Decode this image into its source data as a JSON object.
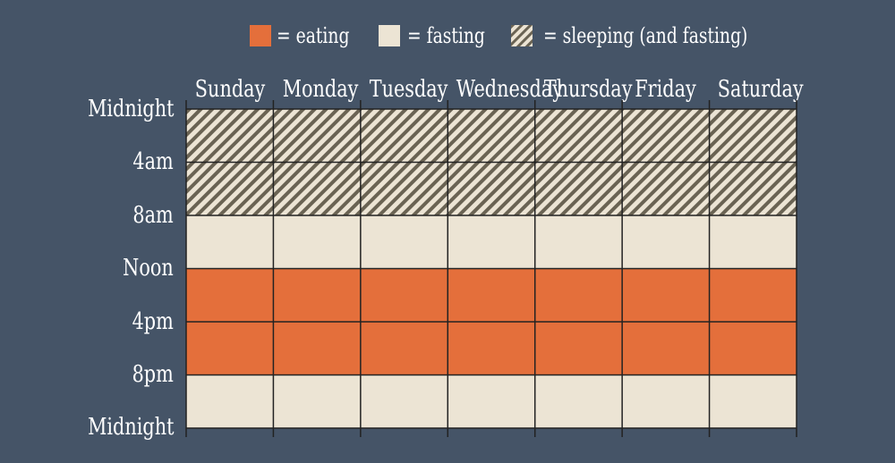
{
  "legend": [
    {
      "label": "= eating",
      "state": "eating"
    },
    {
      "label": "= fasting",
      "state": "fasting"
    },
    {
      "label": "= sleeping (and fasting)",
      "state": "sleeping"
    }
  ],
  "colors": {
    "background": "#455467",
    "eating": "#E46F3B",
    "fasting": "#ECE4D4",
    "sleeping_base": "#ECE4D4",
    "sleeping_stripe": "#6A6353",
    "grid_line": "#222222"
  },
  "days": [
    "Sunday",
    "Monday",
    "Tuesday",
    "Wednesday",
    "Thursday",
    "Friday",
    "Saturday"
  ],
  "time_labels": [
    "Midnight",
    "4am",
    "8am",
    "Noon",
    "4pm",
    "8pm",
    "Midnight"
  ],
  "schedule": [
    "sleeping",
    "sleeping",
    "fasting",
    "eating",
    "eating",
    "fasting"
  ]
}
